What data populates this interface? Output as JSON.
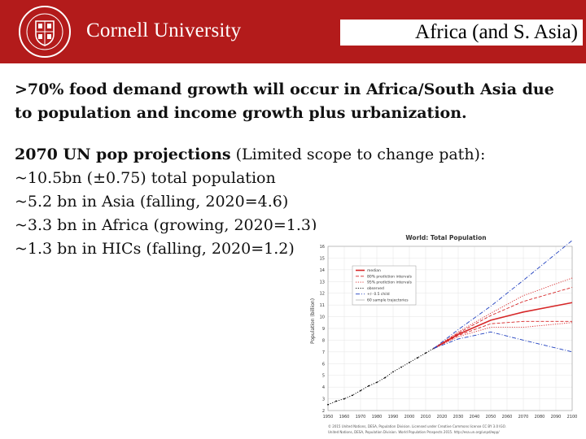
{
  "header": {
    "wordmark": "Cornell University",
    "title": "Africa (and S. Asia)",
    "brand_color": "#b31b1b",
    "seal_icon": "cornell-seal-icon"
  },
  "body": {
    "lead": ">70% food demand growth will occur in Africa/South Asia due to population and income growth plus urbanization.",
    "projections_heading": "2070 UN pop projections",
    "projections_note": " (Limited scope to change path):",
    "items": [
      "~10.5bn (±0.75) total population",
      "~5.2 bn in Asia (falling, 2020=4.6)",
      "~3.3 bn in Africa (growing, 2020=1.3)",
      "~1.3 bn in HICs (falling, 2020=1.2)"
    ]
  },
  "chart_data": {
    "type": "line",
    "title": "World: Total Population",
    "ylabel": "Population (billion)",
    "xlim": [
      1950,
      2100
    ],
    "ylim": [
      2,
      16
    ],
    "x_ticks": [
      1950,
      1960,
      1970,
      1980,
      1990,
      2000,
      2010,
      2020,
      2030,
      2040,
      2050,
      2060,
      2070,
      2080,
      2090,
      2100
    ],
    "y_ticks": [
      2,
      3,
      4,
      5,
      6,
      7,
      8,
      9,
      10,
      11,
      12,
      13,
      14,
      15,
      16
    ],
    "legend_position": "top-left",
    "legend": [
      "median",
      "80% prediction intervals",
      "95% prediction intervals",
      "observed",
      "+/- 0.5 child",
      "60 sample trajectories"
    ],
    "series": [
      {
        "name": "observed",
        "color": "#000000",
        "dash": "dot",
        "x": [
          1950,
          1955,
          1960,
          1965,
          1970,
          1975,
          1980,
          1985,
          1990,
          1995,
          2000,
          2005,
          2010,
          2015
        ],
        "values": [
          2.5,
          2.8,
          3.0,
          3.3,
          3.7,
          4.1,
          4.4,
          4.8,
          5.3,
          5.7,
          6.1,
          6.5,
          6.9,
          7.3
        ]
      },
      {
        "name": "median",
        "color": "#d62728",
        "x": [
          2015,
          2030,
          2050,
          2070,
          2100
        ],
        "values": [
          7.3,
          8.5,
          9.7,
          10.4,
          11.2
        ]
      },
      {
        "name": "80% prediction intervals",
        "color": "#d62728",
        "dash": "dash",
        "x": [
          2015,
          2030,
          2050,
          2070,
          2100
        ],
        "values": [
          7.3,
          8.6,
          10.1,
          11.3,
          12.5
        ]
      },
      {
        "name": "80% prediction intervals",
        "color": "#d62728",
        "dash": "dash",
        "x": [
          2015,
          2030,
          2050,
          2070,
          2100
        ],
        "values": [
          7.3,
          8.4,
          9.4,
          9.6,
          9.6
        ]
      },
      {
        "name": "95% prediction intervals",
        "color": "#d62728",
        "dash": "dot",
        "x": [
          2015,
          2030,
          2050,
          2070,
          2100
        ],
        "values": [
          7.3,
          8.7,
          10.3,
          11.8,
          13.3
        ]
      },
      {
        "name": "95% prediction intervals",
        "color": "#d62728",
        "dash": "dot",
        "x": [
          2015,
          2030,
          2050,
          2070,
          2100
        ],
        "values": [
          7.3,
          8.3,
          9.1,
          9.1,
          9.5
        ]
      },
      {
        "name": "+/- 0.5 child",
        "color": "#1f3fbf",
        "dash": "dashdot",
        "x": [
          2015,
          2030,
          2050,
          2070,
          2100
        ],
        "values": [
          7.3,
          8.9,
          10.9,
          13.1,
          16.5
        ]
      },
      {
        "name": "+/- 0.5 child",
        "color": "#1f3fbf",
        "dash": "dashdot",
        "x": [
          2015,
          2030,
          2050,
          2070,
          2100
        ],
        "values": [
          7.3,
          8.1,
          8.7,
          8.0,
          7.0
        ]
      }
    ],
    "caption_lines": [
      "© 2015 United Nations, DESA, Population Division. Licensed under Creative Commons license CC BY 3.0 IGO.",
      "United Nations, DESA, Population Division. World Population Prospects 2015. http://esa.un.org/unpd/wpp/"
    ]
  }
}
